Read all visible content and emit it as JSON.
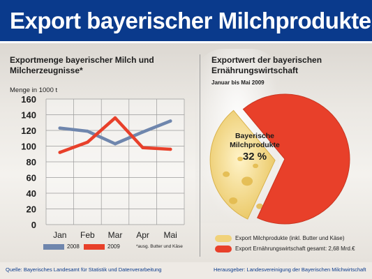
{
  "header": {
    "title": "Export bayerischer Milchprodukte"
  },
  "left_panel": {
    "title_line1": "Exportmenge bayerischer Milch und",
    "title_line2": "Milcherzeugnisse*",
    "unit": "Menge in 1000 t",
    "footnote": "*ausg. Butter und Käse"
  },
  "right_panel": {
    "title_line1": "Exportwert der bayerischen",
    "title_line2": "Ernährungswirtschaft",
    "subtitle": "Januar bis Mai 2009",
    "pie_label_line1": "Bayerische",
    "pie_label_line2": "Milchprodukte",
    "pie_percent": "32 %",
    "legend": [
      {
        "label": "Export Milchprodukte (inkl. Butter und Käse)",
        "color": "#f1d27a"
      },
      {
        "label": "Export Ernährungswirtschaft gesamt: 2,68 Mrd.€",
        "color": "#e8402a"
      }
    ]
  },
  "footer": {
    "source": "Quelle: Bayerisches Landesamt für Statistik und Datenverarbeitung",
    "publisher": "Herausgeber: Landesvereinigung der Bayerischen Milchwirtschaft"
  },
  "chart_data": [
    {
      "type": "line",
      "title": "Exportmenge bayerischer Milch und Milcherzeugnisse*",
      "ylabel": "Menge in 1000 t",
      "categories": [
        "Jan",
        "Feb",
        "Mar",
        "Apr",
        "Mai"
      ],
      "ylim": [
        0,
        160
      ],
      "yticks": [
        "0",
        "20",
        "40",
        "60",
        "80",
        "100",
        "120",
        "140",
        "160"
      ],
      "grid": true,
      "series": [
        {
          "name": "2008",
          "color": "#6f86ad",
          "values": [
            123,
            119,
            103,
            118,
            132
          ]
        },
        {
          "name": "2009",
          "color": "#e8402a",
          "values": [
            92,
            105,
            136,
            98,
            96
          ]
        }
      ]
    },
    {
      "type": "pie",
      "title": "Exportwert der bayerischen Ernährungswirtschaft",
      "slices": [
        {
          "label": "Bayerische Milchprodukte",
          "value": 32,
          "color": "#f1d27a"
        },
        {
          "label": "Export Ernährungswirtschaft gesamt",
          "value": 68,
          "color": "#e8402a"
        }
      ]
    }
  ]
}
